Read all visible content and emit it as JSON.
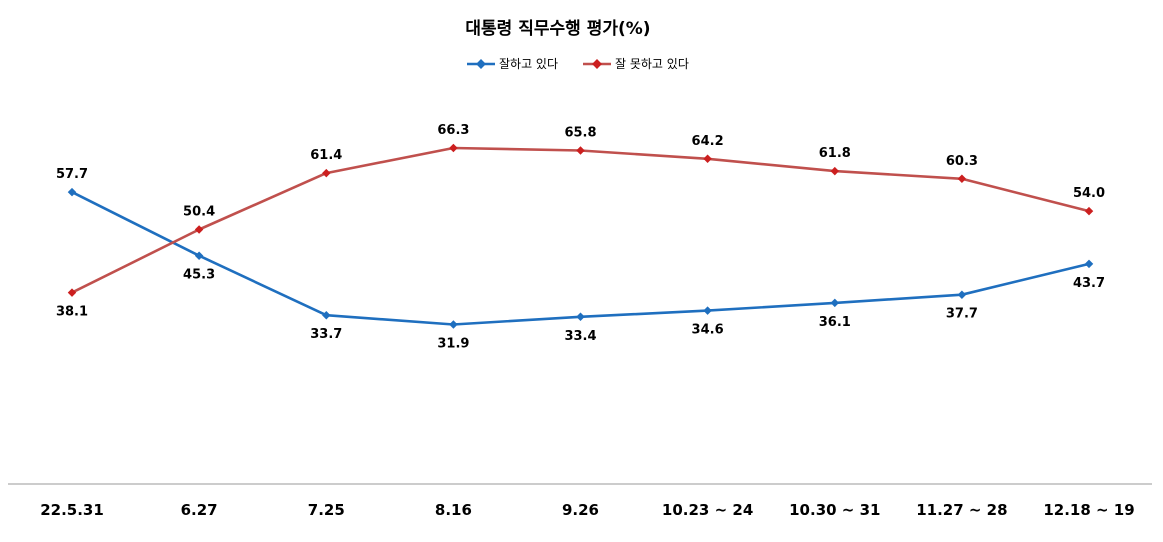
{
  "chart_data": {
    "type": "line",
    "title": "대통령 직무수행 평가(%)",
    "categories": [
      "22.5.31",
      "6.27",
      "7.25",
      "8.16",
      "9.26",
      "10.23 ~ 24",
      "10.30 ~ 31",
      "11.27 ~ 28",
      "12.18 ~ 19"
    ],
    "series": [
      {
        "name": "잘하고 있다",
        "color": "#1f6fbf",
        "values": [
          57.7,
          45.3,
          33.7,
          31.9,
          33.4,
          34.6,
          36.1,
          37.7,
          43.7
        ]
      },
      {
        "name": "잘 못하고 있다",
        "color": "#c0504d",
        "values": [
          38.1,
          50.4,
          61.4,
          66.3,
          65.8,
          64.2,
          61.8,
          60.3,
          54.0
        ]
      }
    ],
    "legend": "top-center",
    "grid": false,
    "xlabel": "",
    "ylabel": ""
  }
}
